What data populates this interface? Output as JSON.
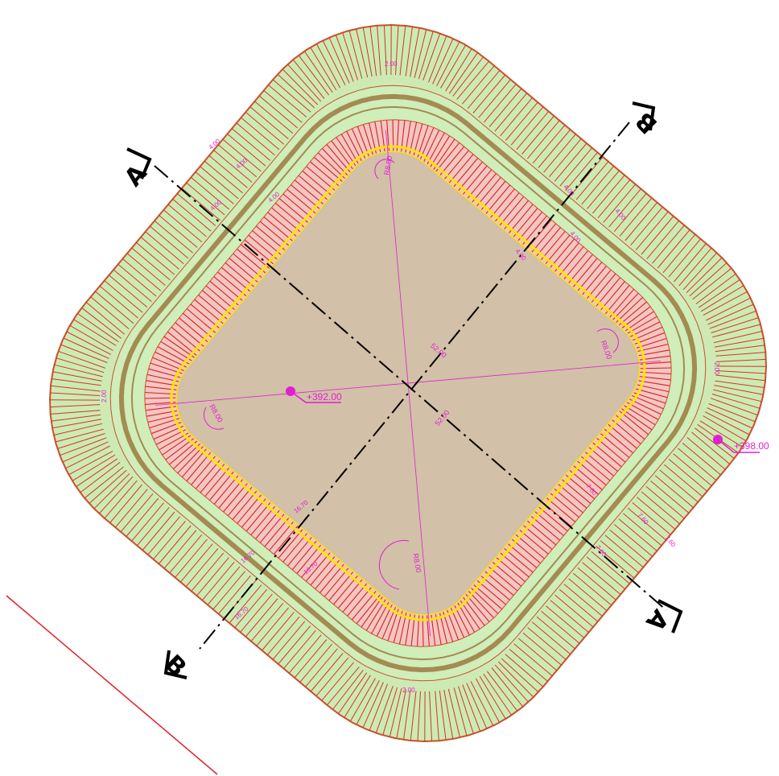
{
  "drawing": {
    "colors": {
      "outer_fill": "#cdeab5",
      "outer_hatch": "#cc3a24",
      "outer_edge": "#c9502e",
      "berm_fill": "#cfeeb9",
      "road_fill": "#a58a52",
      "inner_fill": "#f1c7c2",
      "inner_hatch": "#e01e1e",
      "crest_line": "#ffe400",
      "floor_fill": "#d2c0a8",
      "magenta": "#e020d0",
      "axis": "#000000",
      "boundary": "#e0202a"
    },
    "section_a_left": "A",
    "section_a_right": "A",
    "section_b_top": "B",
    "section_b_bottom": "B",
    "elevation_floor": "+392.00",
    "elevation_crest": "+398.00",
    "radius_labels": [
      "R8.00",
      "R8.00",
      "R8.00",
      "R8.00"
    ],
    "diagonal_labels": [
      "52.00",
      "52.00"
    ],
    "dimension_labels": [
      "4.00",
      "4.00",
      "4.00",
      "4.00",
      "4.00",
      "4.00",
      "4.00",
      "4.00",
      "7.60",
      "7.60",
      "7.60",
      "7.60",
      "16.70",
      "16.70",
      "16.70",
      "16.70",
      "2.00",
      "2.00",
      "2.00",
      "2.00"
    ]
  }
}
